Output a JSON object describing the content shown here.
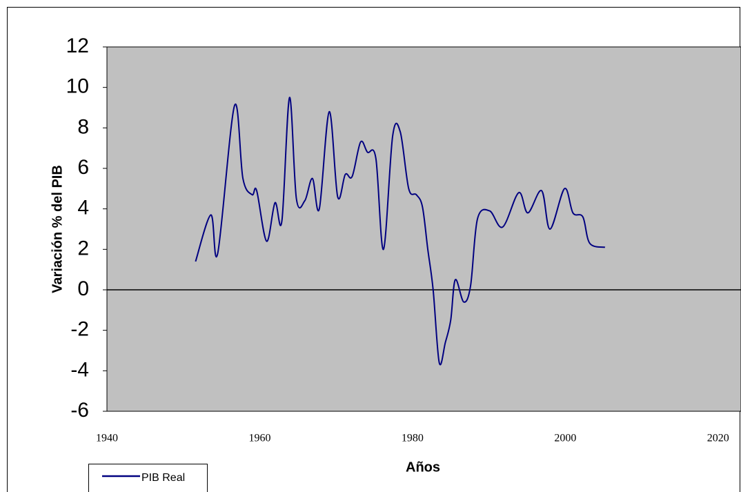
{
  "chart_data": {
    "type": "line",
    "y_label": "Variación % del PIB",
    "x_label": "Años",
    "x": [
      1951.6,
      1953.6,
      1954.5,
      1956.7,
      1957.8,
      1959.0,
      1959.6,
      1960.9,
      1962.0,
      1962.9,
      1963.9,
      1964.8,
      1965.9,
      1966.9,
      1967.8,
      1969.1,
      1970.2,
      1971.2,
      1972.1,
      1973.2,
      1974.1,
      1975.2,
      1976.2,
      1977.4,
      1978.4,
      1979.5,
      1980.5,
      1981.3,
      1982.0,
      1982.7,
      1983.5,
      1984.3,
      1985.0,
      1985.6,
      1986.7,
      1987.6,
      1988.5,
      1990.1,
      1991.8,
      1993.9,
      1995.1,
      1996.9,
      1998.0,
      1999.9,
      2001.0,
      2002.3,
      2003.2,
      2005.2
    ],
    "series": [
      {
        "name": "PIB Real",
        "color": "#000080",
        "values": [
          1.4,
          3.7,
          1.8,
          9.1,
          5.5,
          4.7,
          4.9,
          2.4,
          4.3,
          3.4,
          9.5,
          4.5,
          4.4,
          5.5,
          4.0,
          8.8,
          4.6,
          5.7,
          5.6,
          7.3,
          6.8,
          6.5,
          2.0,
          7.6,
          7.8,
          5.0,
          4.7,
          4.1,
          2.0,
          0,
          -3.6,
          -2.6,
          -1.5,
          0.5,
          -0.6,
          0.2,
          3.5,
          3.9,
          3.1,
          4.8,
          3.8,
          4.9,
          3.0,
          5.0,
          3.8,
          3.6,
          2.3,
          2.1
        ]
      }
    ],
    "xlim": [
      1940,
      2023
    ],
    "xticks": [
      1940,
      1960,
      1980,
      2000,
      2020
    ],
    "ylim": [
      -6,
      12
    ],
    "yticks": [
      -6,
      -4,
      -2,
      0,
      2,
      4,
      6,
      8,
      10,
      12
    ],
    "plot_background": "#c0c0c0",
    "legend": "bottom-left"
  }
}
